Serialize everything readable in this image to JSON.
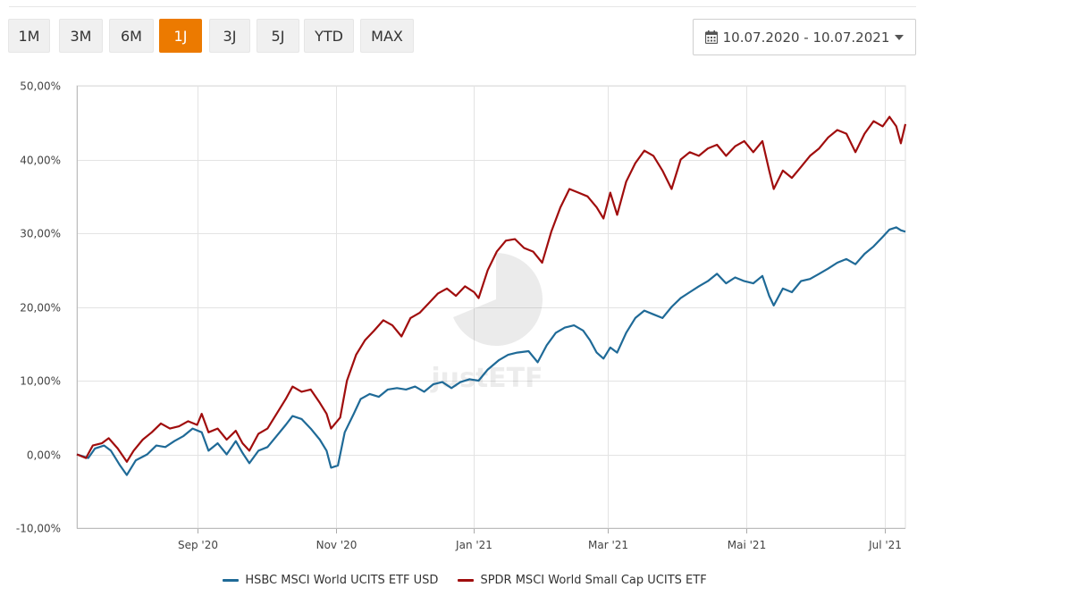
{
  "range_tabs": [
    {
      "label": "1M",
      "active": false
    },
    {
      "label": "3M",
      "active": false
    },
    {
      "label": "6M",
      "active": false
    },
    {
      "label": "1J",
      "active": true
    },
    {
      "label": "3J",
      "active": false
    },
    {
      "label": "5J",
      "active": false
    },
    {
      "label": "YTD",
      "active": false
    },
    {
      "label": "MAX",
      "active": false
    }
  ],
  "date_range": {
    "label": "10.07.2020 - 10.07.2021",
    "icon": "calendar-icon",
    "caret_icon": "caret-down-icon"
  },
  "watermark": {
    "text": "justETF"
  },
  "colors": {
    "accent": "#ec7a00",
    "hsbc": "#1f6a97",
    "spdr": "#a00d0d",
    "grid": "#e3e3e3"
  },
  "chart_data": {
    "type": "line",
    "ylim": [
      -10,
      50
    ],
    "yticks": [
      -10,
      0,
      10,
      20,
      30,
      40,
      50
    ],
    "ytick_labels": [
      "-10,00%",
      "0,00%",
      "10,00%",
      "20,00%",
      "30,00%",
      "40,00%",
      "50,00%"
    ],
    "xlim": [
      "2020-07-10",
      "2021-07-10"
    ],
    "xticks": [
      "2020-09-01",
      "2020-11-01",
      "2021-01-01",
      "2021-03-01",
      "2021-05-01",
      "2021-07-01"
    ],
    "xtick_labels": [
      "Sep '20",
      "Nov '20",
      "Jan '21",
      "Mar '21",
      "Mai '21",
      "Jul '21"
    ],
    "legend_position": "bottom",
    "grid": true,
    "series": [
      {
        "name": "HSBC MSCI World UCITS ETF USD",
        "color": "#1f6a97",
        "points": [
          [
            "2020-07-10",
            0.0
          ],
          [
            "2020-07-15",
            -0.5
          ],
          [
            "2020-07-18",
            0.8
          ],
          [
            "2020-07-22",
            1.2
          ],
          [
            "2020-07-25",
            0.5
          ],
          [
            "2020-07-29",
            -1.5
          ],
          [
            "2020-08-01",
            -2.8
          ],
          [
            "2020-08-05",
            -0.8
          ],
          [
            "2020-08-10",
            0.0
          ],
          [
            "2020-08-14",
            1.2
          ],
          [
            "2020-08-18",
            1.0
          ],
          [
            "2020-08-22",
            1.8
          ],
          [
            "2020-08-26",
            2.5
          ],
          [
            "2020-08-30",
            3.5
          ],
          [
            "2020-09-03",
            3.0
          ],
          [
            "2020-09-06",
            0.5
          ],
          [
            "2020-09-10",
            1.5
          ],
          [
            "2020-09-14",
            0.0
          ],
          [
            "2020-09-18",
            1.8
          ],
          [
            "2020-09-21",
            0.2
          ],
          [
            "2020-09-24",
            -1.2
          ],
          [
            "2020-09-28",
            0.5
          ],
          [
            "2020-10-02",
            1.0
          ],
          [
            "2020-10-06",
            2.5
          ],
          [
            "2020-10-10",
            4.0
          ],
          [
            "2020-10-13",
            5.2
          ],
          [
            "2020-10-17",
            4.8
          ],
          [
            "2020-10-21",
            3.5
          ],
          [
            "2020-10-25",
            2.0
          ],
          [
            "2020-10-28",
            0.5
          ],
          [
            "2020-10-30",
            -1.8
          ],
          [
            "2020-11-02",
            -1.5
          ],
          [
            "2020-11-05",
            3.0
          ],
          [
            "2020-11-09",
            5.5
          ],
          [
            "2020-11-12",
            7.5
          ],
          [
            "2020-11-16",
            8.2
          ],
          [
            "2020-11-20",
            7.8
          ],
          [
            "2020-11-24",
            8.8
          ],
          [
            "2020-11-28",
            9.0
          ],
          [
            "2020-12-02",
            8.8
          ],
          [
            "2020-12-06",
            9.2
          ],
          [
            "2020-12-10",
            8.5
          ],
          [
            "2020-12-14",
            9.5
          ],
          [
            "2020-12-18",
            9.8
          ],
          [
            "2020-12-22",
            9.0
          ],
          [
            "2020-12-26",
            9.8
          ],
          [
            "2020-12-30",
            10.2
          ],
          [
            "2021-01-03",
            10.0
          ],
          [
            "2021-01-07",
            11.5
          ],
          [
            "2021-01-12",
            12.8
          ],
          [
            "2021-01-16",
            13.5
          ],
          [
            "2021-01-20",
            13.8
          ],
          [
            "2021-01-25",
            14.0
          ],
          [
            "2021-01-29",
            12.5
          ],
          [
            "2021-02-02",
            14.8
          ],
          [
            "2021-02-06",
            16.5
          ],
          [
            "2021-02-10",
            17.2
          ],
          [
            "2021-02-14",
            17.5
          ],
          [
            "2021-02-18",
            16.8
          ],
          [
            "2021-02-21",
            15.5
          ],
          [
            "2021-02-24",
            13.8
          ],
          [
            "2021-02-27",
            13.0
          ],
          [
            "2021-03-02",
            14.5
          ],
          [
            "2021-03-05",
            13.8
          ],
          [
            "2021-03-09",
            16.5
          ],
          [
            "2021-03-13",
            18.5
          ],
          [
            "2021-03-17",
            19.5
          ],
          [
            "2021-03-21",
            19.0
          ],
          [
            "2021-03-25",
            18.5
          ],
          [
            "2021-03-29",
            20.0
          ],
          [
            "2021-04-02",
            21.2
          ],
          [
            "2021-04-06",
            22.0
          ],
          [
            "2021-04-10",
            22.8
          ],
          [
            "2021-04-14",
            23.5
          ],
          [
            "2021-04-18",
            24.5
          ],
          [
            "2021-04-22",
            23.2
          ],
          [
            "2021-04-26",
            24.0
          ],
          [
            "2021-04-30",
            23.5
          ],
          [
            "2021-05-04",
            23.2
          ],
          [
            "2021-05-08",
            24.2
          ],
          [
            "2021-05-11",
            21.5
          ],
          [
            "2021-05-13",
            20.2
          ],
          [
            "2021-05-17",
            22.5
          ],
          [
            "2021-05-21",
            22.0
          ],
          [
            "2021-05-25",
            23.5
          ],
          [
            "2021-05-29",
            23.8
          ],
          [
            "2021-06-02",
            24.5
          ],
          [
            "2021-06-06",
            25.2
          ],
          [
            "2021-06-10",
            26.0
          ],
          [
            "2021-06-14",
            26.5
          ],
          [
            "2021-06-18",
            25.8
          ],
          [
            "2021-06-22",
            27.2
          ],
          [
            "2021-06-26",
            28.2
          ],
          [
            "2021-06-30",
            29.5
          ],
          [
            "2021-07-03",
            30.5
          ],
          [
            "2021-07-06",
            30.8
          ],
          [
            "2021-07-08",
            30.4
          ],
          [
            "2021-07-10",
            30.2
          ]
        ]
      },
      {
        "name": "SPDR MSCI World Small Cap UCITS ETF",
        "color": "#a00d0d",
        "points": [
          [
            "2020-07-10",
            0.0
          ],
          [
            "2020-07-14",
            -0.5
          ],
          [
            "2020-07-17",
            1.2
          ],
          [
            "2020-07-21",
            1.5
          ],
          [
            "2020-07-24",
            2.2
          ],
          [
            "2020-07-28",
            0.8
          ],
          [
            "2020-08-01",
            -1.0
          ],
          [
            "2020-08-04",
            0.5
          ],
          [
            "2020-08-08",
            2.0
          ],
          [
            "2020-08-12",
            3.0
          ],
          [
            "2020-08-16",
            4.2
          ],
          [
            "2020-08-20",
            3.5
          ],
          [
            "2020-08-24",
            3.8
          ],
          [
            "2020-08-28",
            4.5
          ],
          [
            "2020-09-01",
            4.0
          ],
          [
            "2020-09-03",
            5.5
          ],
          [
            "2020-09-06",
            3.0
          ],
          [
            "2020-09-10",
            3.5
          ],
          [
            "2020-09-14",
            2.0
          ],
          [
            "2020-09-18",
            3.2
          ],
          [
            "2020-09-21",
            1.5
          ],
          [
            "2020-09-24",
            0.5
          ],
          [
            "2020-09-28",
            2.8
          ],
          [
            "2020-10-02",
            3.5
          ],
          [
            "2020-10-06",
            5.5
          ],
          [
            "2020-10-10",
            7.5
          ],
          [
            "2020-10-13",
            9.2
          ],
          [
            "2020-10-17",
            8.5
          ],
          [
            "2020-10-21",
            8.8
          ],
          [
            "2020-10-25",
            7.0
          ],
          [
            "2020-10-28",
            5.5
          ],
          [
            "2020-10-30",
            3.5
          ],
          [
            "2020-11-03",
            5.0
          ],
          [
            "2020-11-06",
            10.0
          ],
          [
            "2020-11-10",
            13.5
          ],
          [
            "2020-11-14",
            15.5
          ],
          [
            "2020-11-18",
            16.8
          ],
          [
            "2020-11-22",
            18.2
          ],
          [
            "2020-11-26",
            17.5
          ],
          [
            "2020-11-30",
            16.0
          ],
          [
            "2020-12-04",
            18.5
          ],
          [
            "2020-12-08",
            19.2
          ],
          [
            "2020-12-12",
            20.5
          ],
          [
            "2020-12-16",
            21.8
          ],
          [
            "2020-12-20",
            22.5
          ],
          [
            "2020-12-24",
            21.5
          ],
          [
            "2020-12-28",
            22.8
          ],
          [
            "2021-01-01",
            22.0
          ],
          [
            "2021-01-03",
            21.2
          ],
          [
            "2021-01-07",
            25.0
          ],
          [
            "2021-01-11",
            27.5
          ],
          [
            "2021-01-15",
            29.0
          ],
          [
            "2021-01-19",
            29.2
          ],
          [
            "2021-01-23",
            28.0
          ],
          [
            "2021-01-27",
            27.5
          ],
          [
            "2021-01-31",
            26.0
          ],
          [
            "2021-02-04",
            30.2
          ],
          [
            "2021-02-08",
            33.5
          ],
          [
            "2021-02-12",
            36.0
          ],
          [
            "2021-02-16",
            35.5
          ],
          [
            "2021-02-20",
            35.0
          ],
          [
            "2021-02-24",
            33.5
          ],
          [
            "2021-02-27",
            32.0
          ],
          [
            "2021-03-02",
            35.5
          ],
          [
            "2021-03-05",
            32.5
          ],
          [
            "2021-03-09",
            37.0
          ],
          [
            "2021-03-13",
            39.5
          ],
          [
            "2021-03-17",
            41.2
          ],
          [
            "2021-03-21",
            40.5
          ],
          [
            "2021-03-25",
            38.5
          ],
          [
            "2021-03-29",
            36.0
          ],
          [
            "2021-04-02",
            40.0
          ],
          [
            "2021-04-06",
            41.0
          ],
          [
            "2021-04-10",
            40.5
          ],
          [
            "2021-04-14",
            41.5
          ],
          [
            "2021-04-18",
            42.0
          ],
          [
            "2021-04-22",
            40.5
          ],
          [
            "2021-04-26",
            41.8
          ],
          [
            "2021-04-30",
            42.5
          ],
          [
            "2021-05-04",
            41.0
          ],
          [
            "2021-05-08",
            42.5
          ],
          [
            "2021-05-11",
            38.5
          ],
          [
            "2021-05-13",
            36.0
          ],
          [
            "2021-05-17",
            38.5
          ],
          [
            "2021-05-21",
            37.5
          ],
          [
            "2021-05-25",
            39.0
          ],
          [
            "2021-05-29",
            40.5
          ],
          [
            "2021-06-02",
            41.5
          ],
          [
            "2021-06-06",
            43.0
          ],
          [
            "2021-06-10",
            44.0
          ],
          [
            "2021-06-14",
            43.5
          ],
          [
            "2021-06-18",
            41.0
          ],
          [
            "2021-06-22",
            43.5
          ],
          [
            "2021-06-26",
            45.2
          ],
          [
            "2021-06-30",
            44.5
          ],
          [
            "2021-07-03",
            45.8
          ],
          [
            "2021-07-06",
            44.5
          ],
          [
            "2021-07-08",
            42.2
          ],
          [
            "2021-07-10",
            44.8
          ]
        ]
      }
    ]
  }
}
